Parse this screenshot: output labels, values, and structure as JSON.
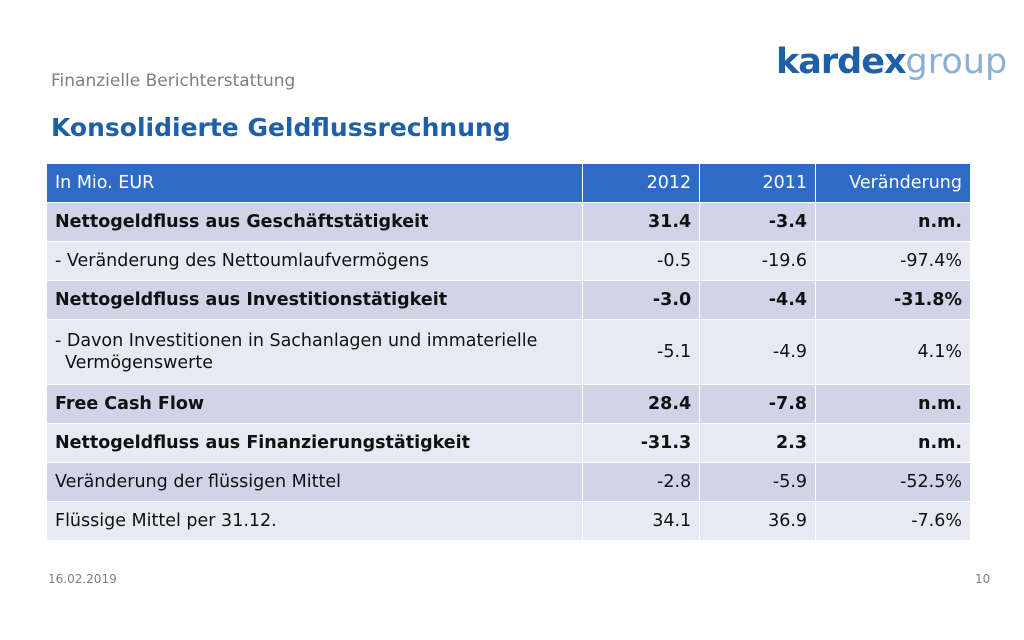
{
  "header": {
    "subtitle": "Finanzielle Berichterstattung",
    "title": "Konsolidierte Geldflussrechnung",
    "logo_part1": "kardex",
    "logo_part2": "group"
  },
  "table": {
    "columns": [
      "In Mio. EUR",
      "2012",
      "2011",
      "Veränderung"
    ],
    "rows": [
      {
        "label": "Nettogeldfluss  aus Geschäftstätigkeit",
        "y2012": "31.4",
        "y2011": "-3.4",
        "change": "n.m."
      },
      {
        "label": "- Veränderung des Nettoumlaufvermögens",
        "y2012": "-0.5",
        "y2011": "-19.6",
        "change": "-97.4%"
      },
      {
        "label": "Nettogeldfluss  aus Investitionstätigkeit",
        "y2012": "-3.0",
        "y2011": "-4.4",
        "change": "-31.8%"
      },
      {
        "label": "- Davon Investitionen in Sachanlagen und immaterielle",
        "label_line2": "Vermögenswerte",
        "y2012": "-5.1",
        "y2011": "-4.9",
        "change": "4.1%"
      },
      {
        "label": "Free Cash Flow",
        "y2012": "28.4",
        "y2011": "-7.8",
        "change": "n.m."
      },
      {
        "label": "Nettogeldfluss aus Finanzierungstätigkeit",
        "y2012": "-31.3",
        "y2011": "2.3",
        "change": "n.m."
      },
      {
        "label": "Veränderung der flüssigen Mittel",
        "y2012": "-2.8",
        "y2011": "-5.9",
        "change": "-52.5%"
      },
      {
        "label": "Flüssige Mittel per 31.12.",
        "y2012": "34.1",
        "y2011": "36.9",
        "change": "-7.6%"
      }
    ]
  },
  "footer": {
    "date": "16.02.2019",
    "page": "10"
  },
  "colors": {
    "title_blue": "#1f5fa8",
    "header_blue": "#2e6bc7",
    "row_dark": "#cfd4e6",
    "row_light": "#e7eaf3"
  }
}
